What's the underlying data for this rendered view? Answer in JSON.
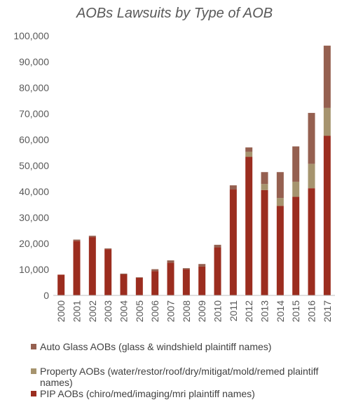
{
  "chart_data": {
    "type": "bar",
    "stacked": true,
    "title": "AOBs Lawsuits by Type of AOB",
    "xlabel": "",
    "ylabel": "",
    "ylim": [
      0,
      100000
    ],
    "yticks": [
      "0",
      "10,000",
      "20,000",
      "30,000",
      "40,000",
      "50,000",
      "60,000",
      "70,000",
      "80,000",
      "90,000",
      "100,000"
    ],
    "categories": [
      "2000",
      "2001",
      "2002",
      "2003",
      "2004",
      "2005",
      "2006",
      "2007",
      "2008",
      "2009",
      "2010",
      "2011",
      "2012",
      "2013",
      "2014",
      "2015",
      "2016",
      "2017"
    ],
    "series": [
      {
        "name": "PIP AOBs (chiro/med/imaging/mri plaintiff names)",
        "color": "#9b2d1f",
        "values": [
          8000,
          21000,
          22500,
          17800,
          8100,
          6800,
          9400,
          12600,
          10000,
          11100,
          18500,
          40800,
          53400,
          40600,
          34500,
          38000,
          41300,
          61500
        ]
      },
      {
        "name": "Property AOBs (water/restor/roof/dry/mitigat/mold/remed plaintiff names)",
        "color": "#a6946e",
        "values": [
          0,
          0,
          0,
          0,
          0,
          0,
          0,
          0,
          0,
          0,
          0,
          0,
          1900,
          2300,
          3000,
          5800,
          9400,
          10700
        ]
      },
      {
        "name": "Auto Glass AOBs (glass & windshield plaintiff names)",
        "color": "#956050",
        "values": [
          0,
          500,
          500,
          300,
          300,
          200,
          700,
          900,
          500,
          1000,
          1000,
          1600,
          1700,
          4600,
          10000,
          13600,
          19600,
          24000
        ]
      }
    ],
    "legend_position": "bottom",
    "grid": false
  }
}
